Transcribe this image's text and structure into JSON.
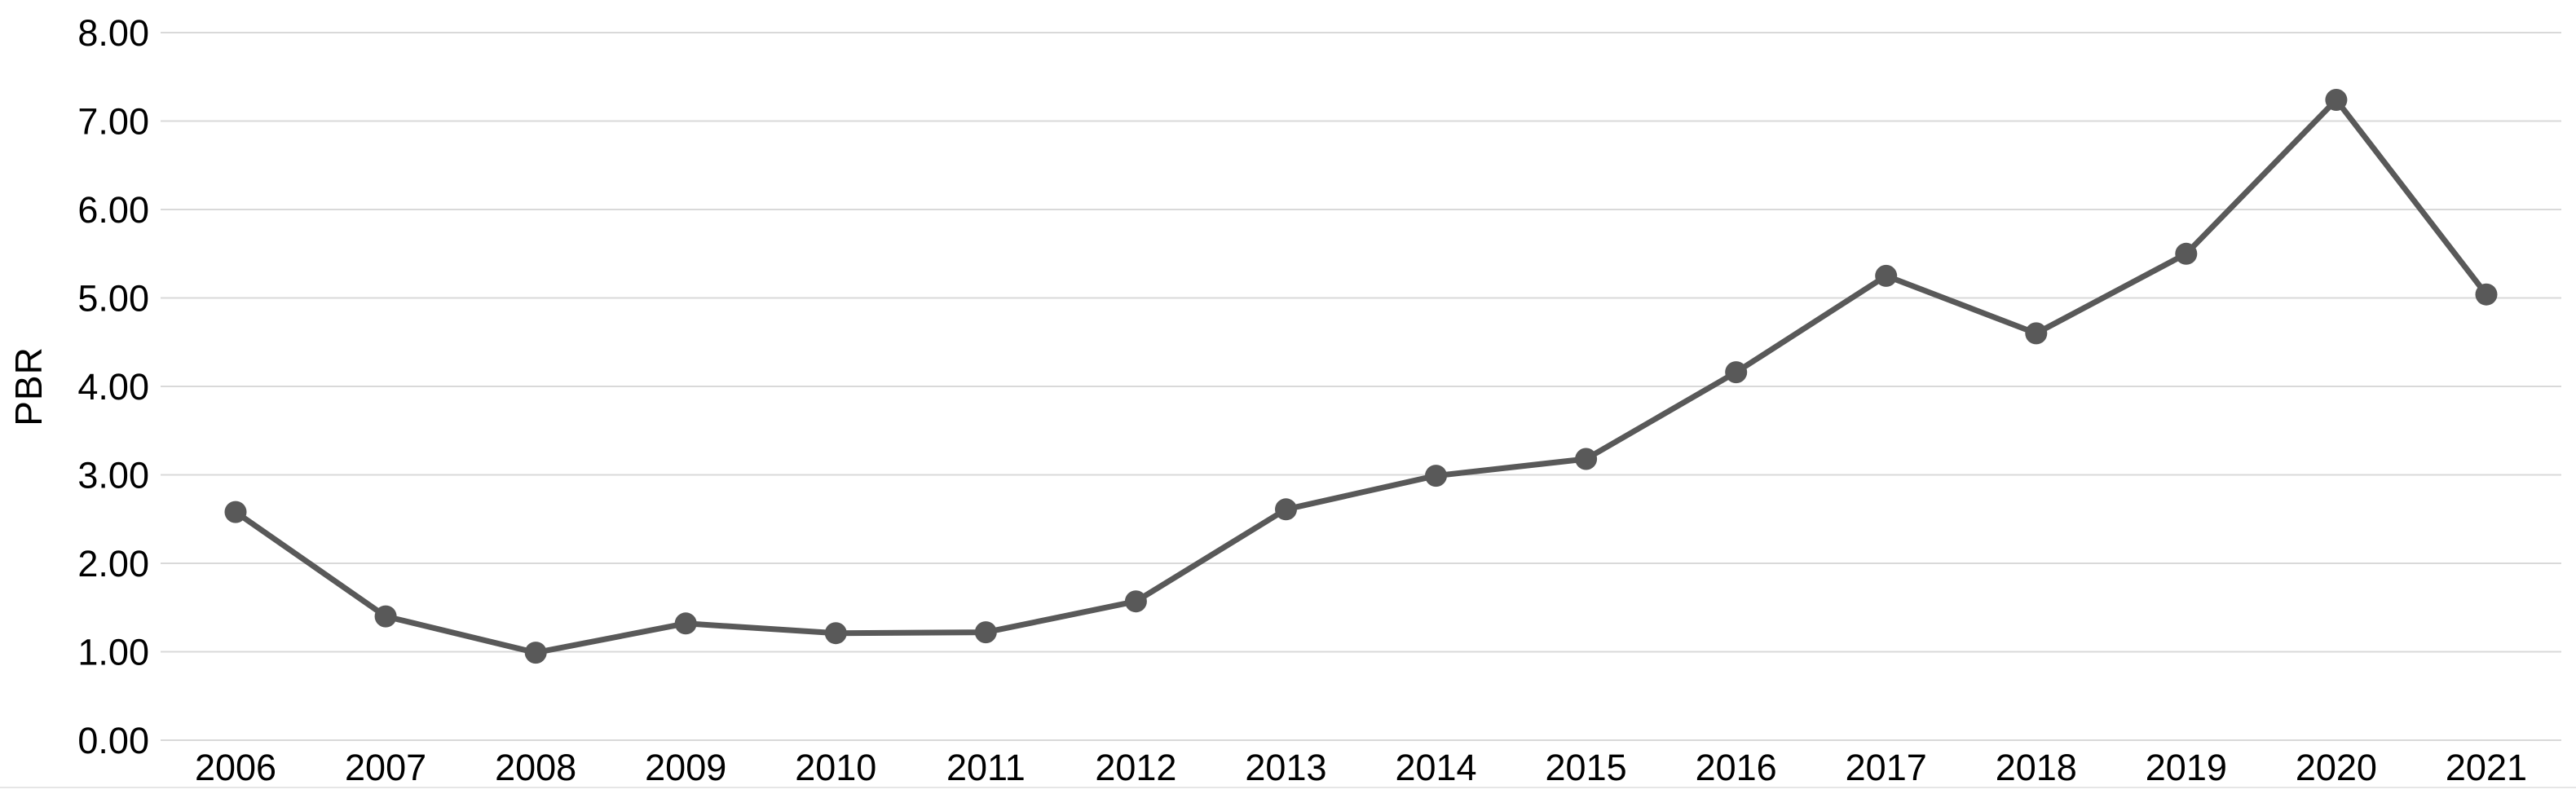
{
  "chart_data": {
    "type": "line",
    "title": "",
    "xlabel": "",
    "ylabel": "PBR",
    "categories": [
      "2006",
      "2007",
      "2008",
      "2009",
      "2010",
      "2011",
      "2012",
      "2013",
      "2014",
      "2015",
      "2016",
      "2017",
      "2018",
      "2019",
      "2020",
      "2021"
    ],
    "series": [
      {
        "name": "PBR",
        "values": [
          2.58,
          1.4,
          0.99,
          1.32,
          1.21,
          1.22,
          1.57,
          2.61,
          2.99,
          3.18,
          4.16,
          5.25,
          4.6,
          5.5,
          7.24,
          5.04
        ]
      }
    ],
    "ylim": [
      0,
      8
    ],
    "ytick_interval": 1,
    "ytick_labels": [
      "0.00",
      "1.00",
      "2.00",
      "3.00",
      "4.00",
      "5.00",
      "6.00",
      "7.00",
      "8.00"
    ],
    "grid": "horizontal-only",
    "legend": "none",
    "marker": "circle",
    "colors": {
      "line": "#595959",
      "marker": "#595959",
      "gridline": "#d9d9d9",
      "axis_text": "#000000",
      "background": "#ffffff",
      "bottom_edge": "#dcdcdc"
    }
  }
}
